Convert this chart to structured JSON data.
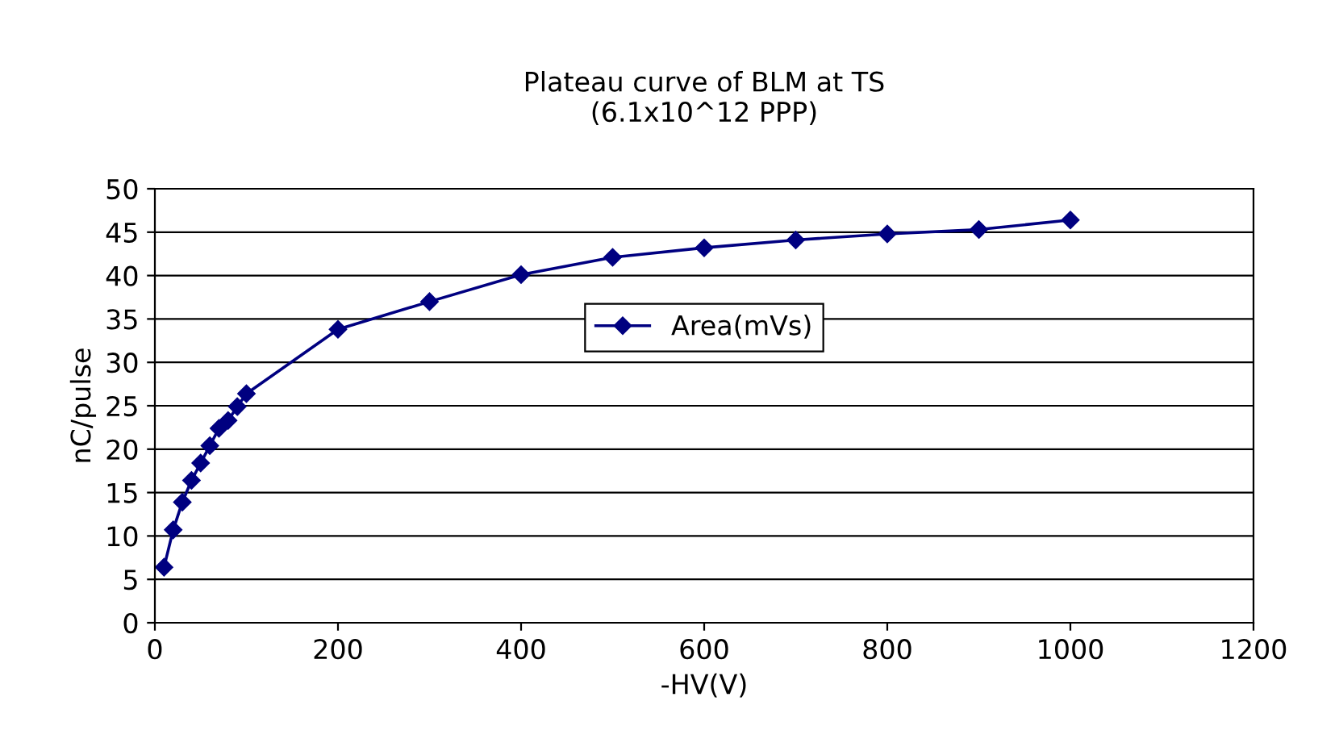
{
  "chart_data": {
    "type": "line",
    "title": "Plateau curve of BLM at TS\n(6.1x10^12 PPP)",
    "xlabel": "-HV(V)",
    "ylabel": "nC/pulse",
    "x": [
      10,
      20,
      30,
      40,
      50,
      60,
      70,
      80,
      90,
      100,
      200,
      300,
      400,
      500,
      600,
      700,
      800,
      900,
      1000
    ],
    "series": [
      {
        "name": "Area(mVs)",
        "color": "#000080",
        "values": [
          6.4,
          10.7,
          13.9,
          16.4,
          18.4,
          20.4,
          22.4,
          23.3,
          24.9,
          26.4,
          33.8,
          37.0,
          40.1,
          42.1,
          43.2,
          44.1,
          44.8,
          45.3,
          46.4
        ]
      }
    ],
    "xlim": [
      0,
      1200
    ],
    "xticks": [
      0,
      200,
      400,
      600,
      800,
      1000,
      1200
    ],
    "ylim": [
      0,
      50
    ],
    "yticks": [
      0,
      5,
      10,
      15,
      20,
      25,
      30,
      35,
      40,
      45,
      50
    ],
    "grid": "y",
    "legend": "center",
    "marker": "diamond",
    "line_style": "solid"
  }
}
